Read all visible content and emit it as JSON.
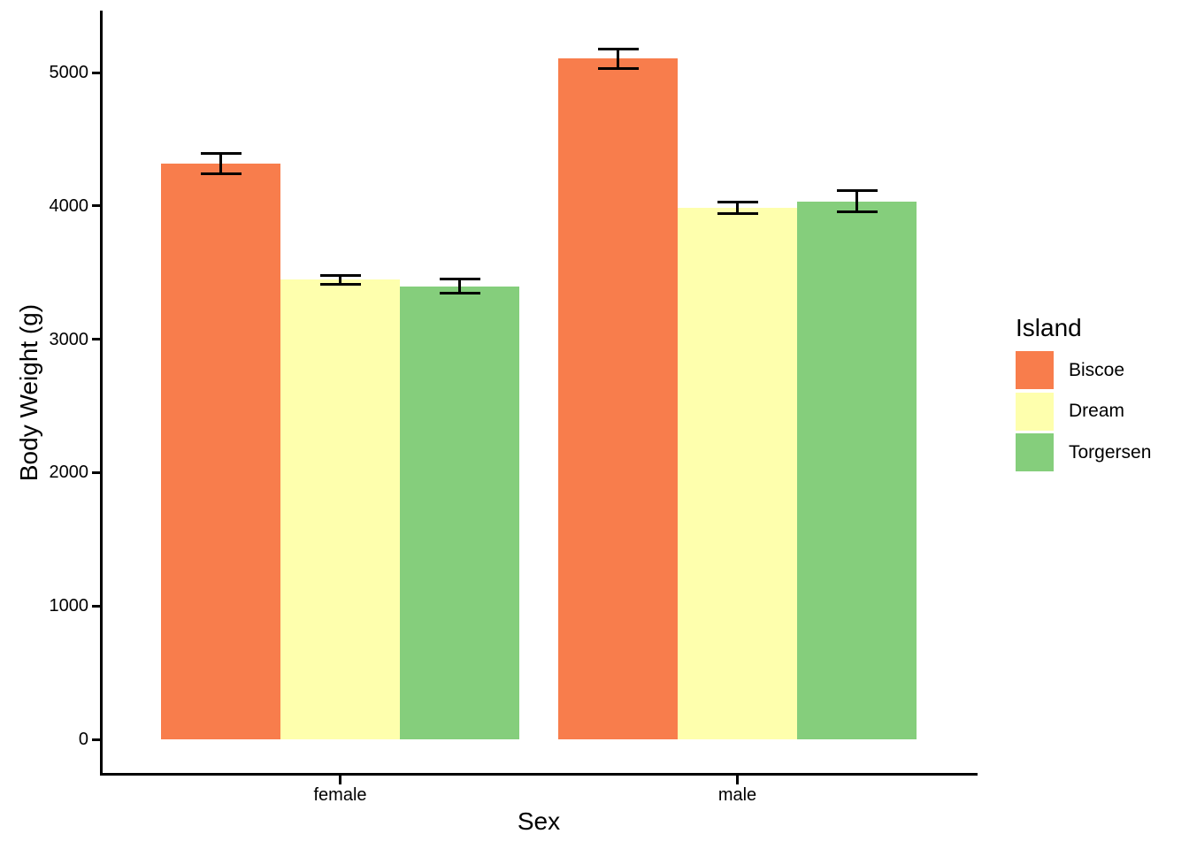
{
  "chart_data": {
    "type": "bar",
    "title": "",
    "xlabel": "Sex",
    "ylabel": "Body Weight (g)",
    "categories": [
      "female",
      "male"
    ],
    "series": [
      {
        "name": "Biscoe",
        "color": "#F87D4C",
        "values": [
          4319,
          5105
        ],
        "se": [
          75,
          74
        ]
      },
      {
        "name": "Dream",
        "color": "#FEFFAD",
        "values": [
          3446,
          3987
        ],
        "se": [
          35,
          44
        ]
      },
      {
        "name": "Torgersen",
        "color": "#85CE7C",
        "values": [
          3396,
          4035
        ],
        "se": [
          53,
          78
        ]
      }
    ],
    "yticks": [
      0,
      1000,
      2000,
      3000,
      4000,
      5000
    ],
    "ytick_labels": [
      "0",
      "1000",
      "2000",
      "3000",
      "4000",
      "5000"
    ],
    "ylim": [
      0,
      5460
    ],
    "grid": false,
    "error_bars": "standard error",
    "bar_layout": "dodged",
    "legend": {
      "title": "Island",
      "position": "right",
      "entries": [
        "Biscoe",
        "Dream",
        "Torgersen"
      ]
    },
    "axis_color": "#000000",
    "text_color": "#000000",
    "background_color": "#FFFFFF"
  }
}
